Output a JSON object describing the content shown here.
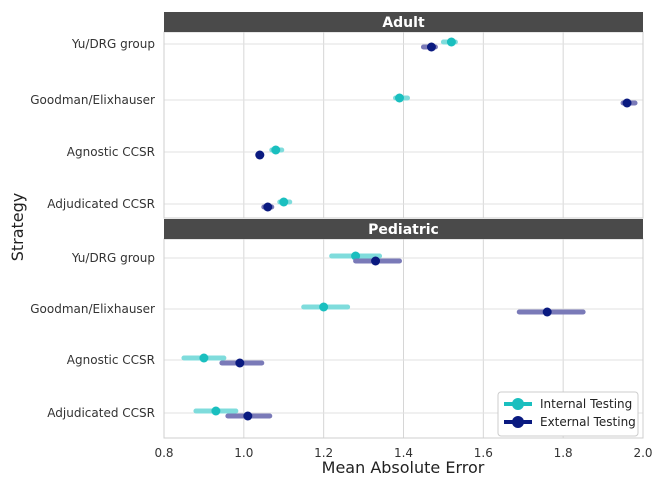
{
  "chart_data": {
    "type": "scatter",
    "subtype": "dot-and-interval",
    "xlabel": "Mean Absolute Error",
    "ylabel": "Strategy",
    "xlim": [
      0.8,
      2.0
    ],
    "xticks": [
      "0.8",
      "1.0",
      "1.2",
      "1.4",
      "1.6",
      "1.8",
      "2.0"
    ],
    "xtick_values": [
      0.8,
      1.0,
      1.2,
      1.4,
      1.6,
      1.8,
      2.0
    ],
    "grid": true,
    "legend_position": "bottom-right",
    "categories": [
      "Yu/DRG group",
      "Goodman/Elixhauser",
      "Agnostic CCSR",
      "Adjudicated CCSR"
    ],
    "series": [
      {
        "name": "Internal Testing",
        "color": "#1abfbf",
        "ci_color": "#7fdcdc"
      },
      {
        "name": "External Testing",
        "color": "#0a1a80",
        "ci_color": "#7a7ab8"
      }
    ],
    "panels": [
      {
        "title": "Adult",
        "rows": [
          {
            "category": "Yu/DRG group",
            "internal": {
              "value": 1.52,
              "low": 1.5,
              "high": 1.53
            },
            "external": {
              "value": 1.47,
              "low": 1.45,
              "high": 1.48
            }
          },
          {
            "category": "Goodman/Elixhauser",
            "internal": {
              "value": 1.39,
              "low": 1.38,
              "high": 1.41
            },
            "external": {
              "value": 1.96,
              "low": 1.95,
              "high": 1.98
            }
          },
          {
            "category": "Agnostic CCSR",
            "internal": {
              "value": 1.08,
              "low": 1.07,
              "high": 1.095
            },
            "external": {
              "value": 1.04,
              "low": 1.035,
              "high": 1.045
            }
          },
          {
            "category": "Adjudicated CCSR",
            "internal": {
              "value": 1.1,
              "low": 1.09,
              "high": 1.115
            },
            "external": {
              "value": 1.06,
              "low": 1.05,
              "high": 1.07
            }
          }
        ]
      },
      {
        "title": "Pediatric",
        "rows": [
          {
            "category": "Yu/DRG group",
            "internal": {
              "value": 1.28,
              "low": 1.22,
              "high": 1.34
            },
            "external": {
              "value": 1.33,
              "low": 1.28,
              "high": 1.39
            }
          },
          {
            "category": "Goodman/Elixhauser",
            "internal": {
              "value": 1.2,
              "low": 1.15,
              "high": 1.26
            },
            "external": {
              "value": 1.76,
              "low": 1.69,
              "high": 1.85
            }
          },
          {
            "category": "Agnostic CCSR",
            "internal": {
              "value": 0.9,
              "low": 0.85,
              "high": 0.95
            },
            "external": {
              "value": 0.99,
              "low": 0.945,
              "high": 1.045
            }
          },
          {
            "category": "Adjudicated CCSR",
            "internal": {
              "value": 0.93,
              "low": 0.88,
              "high": 0.98
            },
            "external": {
              "value": 1.01,
              "low": 0.96,
              "high": 1.065
            }
          }
        ]
      }
    ]
  }
}
